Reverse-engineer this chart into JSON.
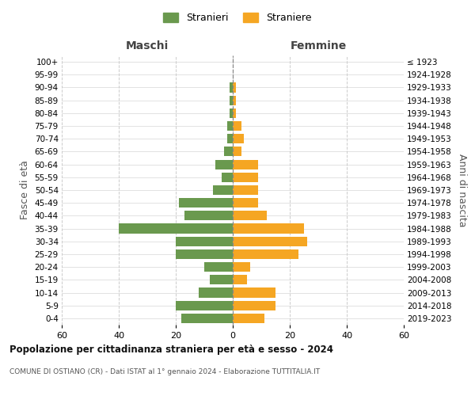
{
  "age_groups": [
    "0-4",
    "5-9",
    "10-14",
    "15-19",
    "20-24",
    "25-29",
    "30-34",
    "35-39",
    "40-44",
    "45-49",
    "50-54",
    "55-59",
    "60-64",
    "65-69",
    "70-74",
    "75-79",
    "80-84",
    "85-89",
    "90-94",
    "95-99",
    "100+"
  ],
  "birth_years": [
    "2019-2023",
    "2014-2018",
    "2009-2013",
    "2004-2008",
    "1999-2003",
    "1994-1998",
    "1989-1993",
    "1984-1988",
    "1979-1983",
    "1974-1978",
    "1969-1973",
    "1964-1968",
    "1959-1963",
    "1954-1958",
    "1949-1953",
    "1944-1948",
    "1939-1943",
    "1934-1938",
    "1929-1933",
    "1924-1928",
    "≤ 1923"
  ],
  "maschi": [
    18,
    20,
    12,
    8,
    10,
    20,
    20,
    40,
    17,
    19,
    7,
    4,
    6,
    3,
    2,
    2,
    1,
    1,
    1,
    0,
    0
  ],
  "femmine": [
    11,
    15,
    15,
    5,
    6,
    23,
    26,
    25,
    12,
    9,
    9,
    9,
    9,
    3,
    4,
    3,
    1,
    1,
    1,
    0,
    0
  ],
  "maschi_color": "#6a994e",
  "femmine_color": "#f5a623",
  "title": "Popolazione per cittadinanza straniera per età e sesso - 2024",
  "subtitle": "COMUNE DI OSTIANO (CR) - Dati ISTAT al 1° gennaio 2024 - Elaborazione TUTTITALIA.IT",
  "legend_maschi": "Stranieri",
  "legend_femmine": "Straniere",
  "xlabel_left": "Maschi",
  "xlabel_right": "Femmine",
  "ylabel_left": "Fasce di età",
  "ylabel_right": "Anni di nascita",
  "xlim": 60,
  "background_color": "#ffffff",
  "grid_color": "#cccccc"
}
